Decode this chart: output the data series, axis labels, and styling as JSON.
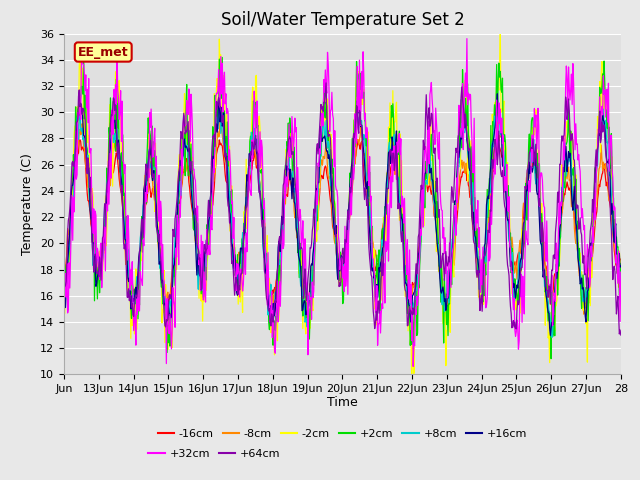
{
  "title": "Soil/Water Temperature Set 2",
  "xlabel": "Time",
  "ylabel": "Temperature (C)",
  "ylim": [
    10,
    36
  ],
  "yticks": [
    10,
    12,
    14,
    16,
    18,
    20,
    22,
    24,
    26,
    28,
    30,
    32,
    34,
    36
  ],
  "xtick_labels": [
    "Jun",
    "13Jun",
    "14Jun",
    "15Jun",
    "16Jun",
    "17Jun",
    "18Jun",
    "19Jun",
    "20Jun",
    "21Jun",
    "22Jun",
    "23Jun",
    "24Jun",
    "25Jun",
    "26Jun",
    "27Jun",
    "28"
  ],
  "series_labels": [
    "-16cm",
    "-8cm",
    "-2cm",
    "+2cm",
    "+8cm",
    "+16cm",
    "+32cm",
    "+64cm"
  ],
  "series_colors": [
    "#ff0000",
    "#ff8800",
    "#ffff00",
    "#00dd00",
    "#00cccc",
    "#000088",
    "#ff00ff",
    "#8800aa"
  ],
  "annotation_text": "EE_met",
  "annotation_bg": "#ffff99",
  "annotation_border": "#cc0000",
  "fig_bg": "#e8e8e8",
  "plot_bg": "#e0e0e0",
  "grid_color": "#ffffff",
  "title_fontsize": 12,
  "axis_label_fontsize": 9,
  "tick_fontsize": 8,
  "legend_fontsize": 8,
  "n_days": 16,
  "points_per_day": 48
}
